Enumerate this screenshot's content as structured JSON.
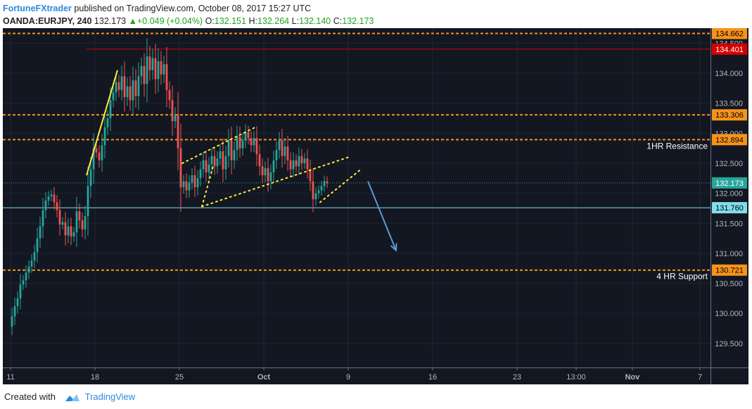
{
  "header": {
    "author": "FortuneFXtrader",
    "published_text": "published on TradingView.com, October 08, 2017 15:27 UTC",
    "symbol": "OANDA:EURJPY, 240",
    "last": "132.173",
    "change": "+0.049 (+0.04%)",
    "o_label": "O:",
    "o_value": "132.151",
    "h_label": "H:",
    "h_value": "132.264",
    "l_label": "L:",
    "l_value": "132.140",
    "c_label": "C:",
    "c_value": "132.173"
  },
  "footer": {
    "created_with": "Created with",
    "brand": "TradingView"
  },
  "colors": {
    "background": "#131722",
    "bull": "#26a69a",
    "bear": "#ef5350",
    "orange": "#f7931a",
    "red_line": "#d50000",
    "cyan_line": "#80deea",
    "yellow": "#ffeb3b",
    "arrow": "#5b9bd5"
  },
  "chart_data": {
    "type": "candlestick",
    "symbol": "OANDA:EURJPY",
    "timeframe": "240",
    "ylim": [
      129.1,
      134.75
    ],
    "y_ticks": [
      129.5,
      130.0,
      130.5,
      131.0,
      131.5,
      132.0,
      132.5,
      133.0,
      133.5,
      134.0,
      134.5
    ],
    "y_tick_labels": [
      "129.500",
      "130.000",
      "130.500",
      "131.000",
      "131.500",
      "132.000",
      "132.500",
      "133.000",
      "133.500",
      "134.000",
      "134.500"
    ],
    "x_ticks": [
      {
        "label": "11",
        "bar": 0
      },
      {
        "label": "18",
        "bar": 30
      },
      {
        "label": "25",
        "bar": 60
      },
      {
        "label": "Oct",
        "bar": 90
      },
      {
        "label": "9",
        "bar": 120
      },
      {
        "label": "16",
        "bar": 150
      },
      {
        "label": "23",
        "bar": 180
      },
      {
        "label": "13:00",
        "bar": 201
      },
      {
        "label": "Nov",
        "bar": 221
      },
      {
        "label": "7",
        "bar": 245
      }
    ],
    "candles_start": [
      129.78,
      129.95,
      130.12,
      130.25,
      130.48,
      130.55,
      130.68,
      130.78,
      130.88,
      131.02,
      131.25,
      131.45,
      131.72,
      131.88,
      131.95
    ],
    "candles_close": [
      129.95,
      130.12,
      130.25,
      130.48,
      130.55,
      130.68,
      130.78,
      130.88,
      131.02,
      131.25,
      131.45,
      131.72,
      131.88,
      131.95,
      131.98,
      131.85,
      131.72,
      131.48,
      131.52,
      131.3,
      131.45,
      131.28,
      131.35,
      131.7,
      131.55,
      131.4,
      131.62,
      132.12,
      132.4,
      132.75,
      132.68,
      132.55,
      132.8,
      133.1,
      133.25,
      133.55,
      133.68,
      133.85,
      133.72,
      133.95,
      133.6,
      133.78,
      133.55,
      133.88,
      133.62,
      133.95,
      134.12,
      133.82,
      134.28,
      134.05,
      134.25,
      133.9,
      134.2,
      133.98,
      134.15,
      133.72,
      133.55,
      133.2,
      133.32,
      132.75,
      132.1,
      132.2,
      132.05,
      132.18,
      132.3,
      132.1,
      132.25,
      132.4,
      132.55,
      132.35,
      132.48,
      132.62,
      132.45,
      132.58,
      132.7,
      132.4,
      132.62,
      132.88,
      132.55,
      132.72,
      132.95,
      132.75,
      132.88,
      133.02,
      132.92,
      132.8,
      132.92,
      132.65,
      132.45,
      132.3,
      132.42,
      132.2,
      132.35,
      132.55,
      132.72,
      132.88,
      132.62,
      132.78,
      132.55,
      132.4,
      132.55,
      132.45,
      132.62,
      132.5,
      132.58,
      132.4,
      132.2,
      131.9,
      132.0,
      132.05,
      132.12,
      132.2,
      132.17
    ],
    "price_lines": [
      {
        "label": "134.662",
        "price": 134.662,
        "style": "orange-dashed"
      },
      {
        "label": "134.401",
        "price": 134.401,
        "style": "red-solid"
      },
      {
        "label": "133.306",
        "price": 133.306,
        "style": "orange-dashed"
      },
      {
        "label": "132.894",
        "price": 132.894,
        "style": "orange-dashed"
      },
      {
        "label": "132.173",
        "price": 132.173,
        "style": "last-price"
      },
      {
        "label": "131.760",
        "price": 131.76,
        "style": "cyan-solid"
      },
      {
        "label": "130.721",
        "price": 130.721,
        "style": "orange-dashed"
      }
    ],
    "annotations": [
      {
        "text": "1HR Resistance",
        "price": 132.894
      },
      {
        "text": "4 HR Support",
        "price": 130.721
      }
    ],
    "drawings": [
      {
        "kind": "yellow-solid",
        "from": {
          "bar": 27,
          "price": 132.3
        },
        "to": {
          "bar": 38,
          "price": 134.05
        }
      },
      {
        "kind": "yellow-dotted",
        "from": {
          "bar": 61,
          "price": 132.5
        },
        "to": {
          "bar": 87,
          "price": 133.1
        }
      },
      {
        "kind": "yellow-dotted",
        "from": {
          "bar": 68,
          "price": 131.78
        },
        "to": {
          "bar": 120,
          "price": 132.6
        }
      },
      {
        "kind": "yellow-dotted",
        "from": {
          "bar": 68,
          "price": 131.78
        },
        "to": {
          "bar": 72,
          "price": 132.45
        }
      },
      {
        "kind": "yellow-dotted",
        "from": {
          "bar": 110,
          "price": 131.85
        },
        "to": {
          "bar": 124,
          "price": 132.38
        }
      },
      {
        "kind": "blue-arrow",
        "from": {
          "bar": 127,
          "price": 132.2
        },
        "to": {
          "bar": 137,
          "price": 131.05
        }
      }
    ]
  }
}
